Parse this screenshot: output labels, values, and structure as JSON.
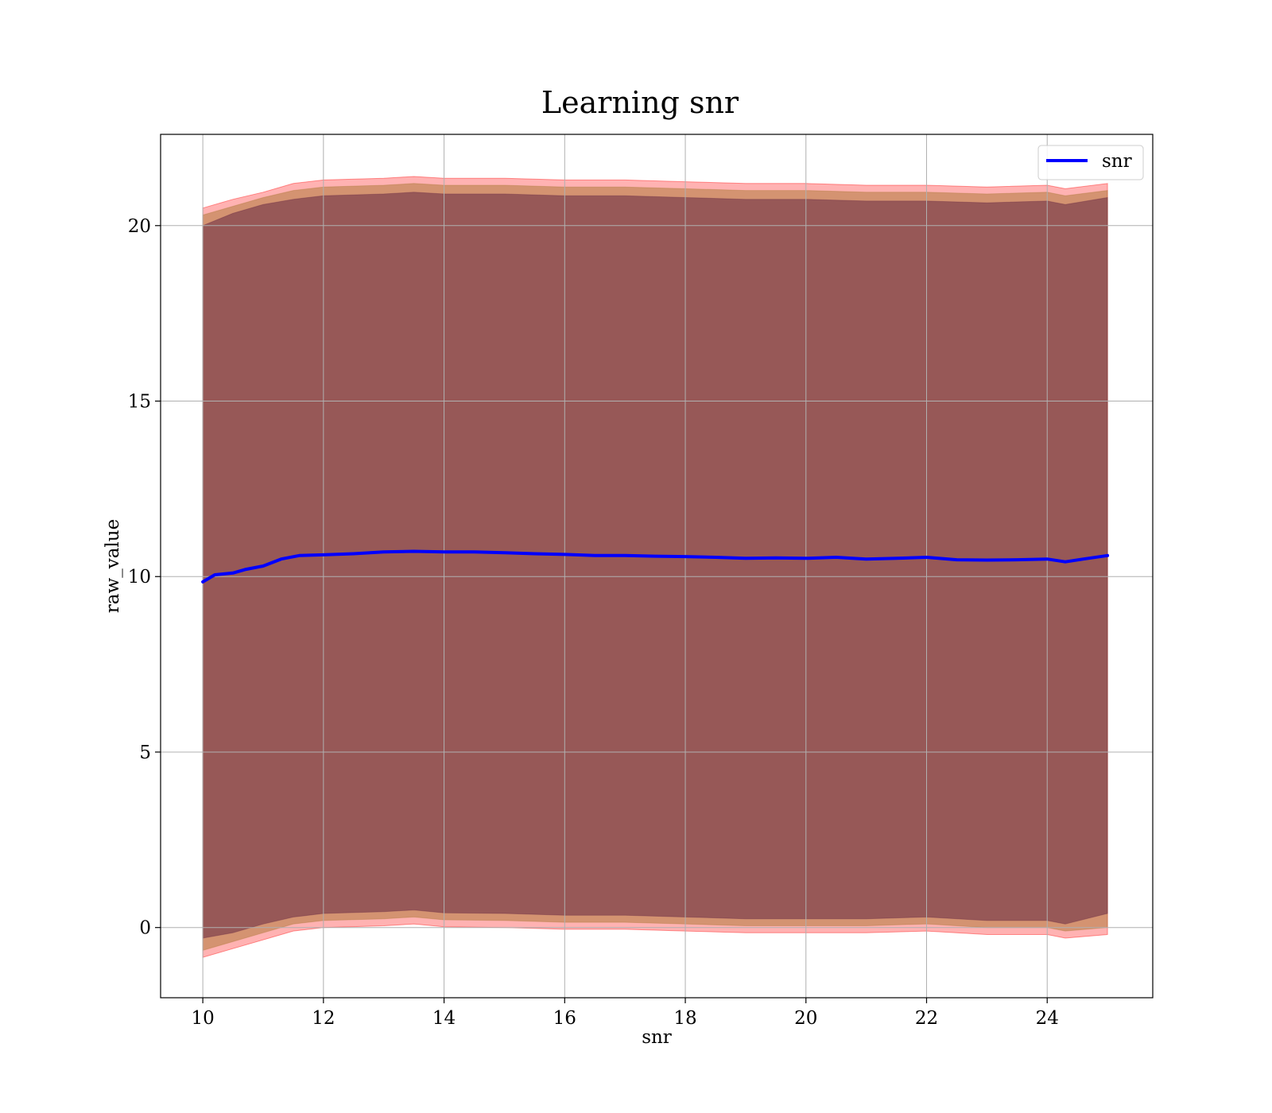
{
  "chart_data": {
    "type": "line",
    "title": "Learning snr",
    "xlabel": "snr",
    "ylabel": "raw_value",
    "xlim": [
      9.3,
      25.75
    ],
    "ylim": [
      -2.0,
      22.6
    ],
    "xticks": [
      10,
      12,
      14,
      16,
      18,
      20,
      22,
      24
    ],
    "yticks": [
      0,
      5,
      10,
      15,
      20
    ],
    "grid": true,
    "legend": {
      "position": "top-right",
      "entries": [
        "snr"
      ]
    },
    "series": [
      {
        "name": "snr",
        "color": "#0000ff",
        "x": [
          10.0,
          10.2,
          10.5,
          10.7,
          11.0,
          11.3,
          11.6,
          12.0,
          12.5,
          13.0,
          13.5,
          14.0,
          14.5,
          15.0,
          15.5,
          16.0,
          16.5,
          17.0,
          17.5,
          18.0,
          18.5,
          19.0,
          19.5,
          20.0,
          20.5,
          21.0,
          21.5,
          22.0,
          22.5,
          23.0,
          23.5,
          24.0,
          24.3,
          24.6,
          25.0
        ],
        "y": [
          9.85,
          10.05,
          10.1,
          10.2,
          10.3,
          10.5,
          10.6,
          10.62,
          10.65,
          10.7,
          10.72,
          10.7,
          10.7,
          10.68,
          10.65,
          10.63,
          10.6,
          10.6,
          10.58,
          10.57,
          10.55,
          10.52,
          10.53,
          10.52,
          10.55,
          10.5,
          10.52,
          10.55,
          10.48,
          10.47,
          10.48,
          10.5,
          10.42,
          10.5,
          10.6
        ]
      }
    ],
    "bands": [
      {
        "color": "#ff0000",
        "opacity": 0.3,
        "x": [
          10.0,
          10.5,
          11.0,
          11.5,
          12.0,
          13.0,
          13.5,
          14.0,
          15.0,
          16.0,
          17.0,
          18.0,
          19.0,
          20.0,
          21.0,
          22.0,
          23.0,
          24.0,
          24.3,
          25.0
        ],
        "upper": [
          20.5,
          20.75,
          20.95,
          21.2,
          21.3,
          21.35,
          21.4,
          21.35,
          21.35,
          21.3,
          21.3,
          21.25,
          21.2,
          21.2,
          21.15,
          21.15,
          21.1,
          21.15,
          21.05,
          21.2
        ],
        "lower": [
          -0.85,
          -0.6,
          -0.35,
          -0.1,
          0.0,
          0.05,
          0.1,
          0.02,
          0.0,
          -0.05,
          -0.05,
          -0.1,
          -0.15,
          -0.15,
          -0.15,
          -0.1,
          -0.2,
          -0.2,
          -0.3,
          -0.2
        ]
      },
      {
        "color": "#b07a3c",
        "opacity": 0.55,
        "x": [
          10.0,
          10.5,
          11.0,
          11.5,
          12.0,
          13.0,
          13.5,
          14.0,
          15.0,
          16.0,
          17.0,
          18.0,
          19.0,
          20.0,
          21.0,
          22.0,
          23.0,
          24.0,
          24.3,
          25.0
        ],
        "upper": [
          20.3,
          20.55,
          20.8,
          21.0,
          21.1,
          21.15,
          21.2,
          21.15,
          21.15,
          21.1,
          21.1,
          21.05,
          21.0,
          21.0,
          20.95,
          20.95,
          20.9,
          20.95,
          20.85,
          21.0
        ],
        "lower": [
          -0.65,
          -0.4,
          -0.15,
          0.1,
          0.2,
          0.25,
          0.3,
          0.22,
          0.2,
          0.15,
          0.15,
          0.1,
          0.05,
          0.05,
          0.05,
          0.1,
          0.0,
          0.0,
          -0.1,
          0.0
        ]
      },
      {
        "color": "#6b2c45",
        "opacity": 0.58,
        "x": [
          10.0,
          10.5,
          11.0,
          11.5,
          12.0,
          13.0,
          13.5,
          14.0,
          15.0,
          16.0,
          17.0,
          18.0,
          19.0,
          20.0,
          21.0,
          22.0,
          23.0,
          24.0,
          24.3,
          25.0
        ],
        "upper": [
          20.0,
          20.35,
          20.6,
          20.75,
          20.85,
          20.9,
          20.95,
          20.9,
          20.9,
          20.85,
          20.85,
          20.8,
          20.75,
          20.75,
          20.7,
          20.7,
          20.65,
          20.7,
          20.6,
          20.8
        ],
        "lower": [
          -0.3,
          -0.15,
          0.1,
          0.3,
          0.4,
          0.45,
          0.5,
          0.42,
          0.4,
          0.35,
          0.35,
          0.3,
          0.25,
          0.25,
          0.25,
          0.3,
          0.2,
          0.2,
          0.1,
          0.4
        ]
      }
    ]
  }
}
